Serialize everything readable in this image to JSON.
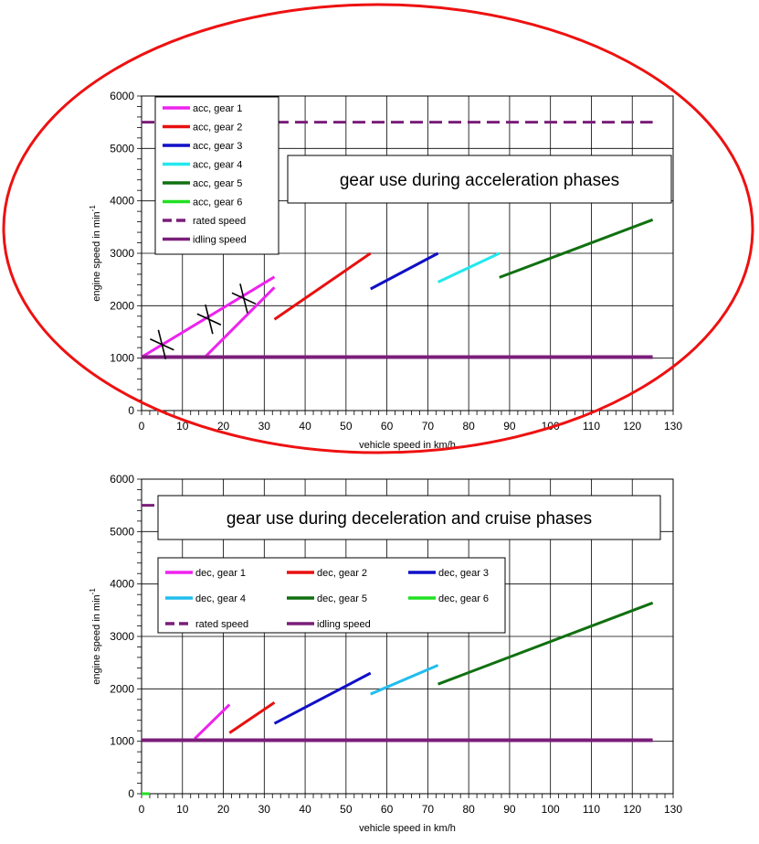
{
  "chart_data": [
    {
      "type": "line",
      "title": "gear use during acceleration phases",
      "xlabel": "vehicle speed in km/h",
      "ylabel": "engine speed in min",
      "ylabel_superscript": "-1",
      "xlim": [
        0,
        130
      ],
      "ylim": [
        0,
        6000
      ],
      "x_ticks": [
        0,
        10,
        20,
        30,
        40,
        50,
        60,
        70,
        80,
        90,
        100,
        110,
        120,
        130
      ],
      "y_ticks": [
        0,
        1000,
        2000,
        3000,
        4000,
        5000,
        6000
      ],
      "grid": true,
      "legend_position": "top-left",
      "series": [
        {
          "name": "acc, gear 1",
          "color": "#ee22ee",
          "style": "solid",
          "segments": [
            [
              [
                0,
                1020
              ],
              [
                32.5,
                2550
              ]
            ],
            [
              [
                15.5,
                1020
              ],
              [
                32.5,
                2350
              ]
            ]
          ]
        },
        {
          "name": "acc, gear 2",
          "color": "#e81010",
          "style": "solid",
          "segments": [
            [
              [
                32.5,
                1740
              ],
              [
                56,
                3000
              ]
            ]
          ]
        },
        {
          "name": "acc, gear 3",
          "color": "#1010c8",
          "style": "solid",
          "segments": [
            [
              [
                56,
                2320
              ],
              [
                72.5,
                3000
              ]
            ]
          ]
        },
        {
          "name": "acc, gear 4",
          "color": "#22e8ee",
          "style": "solid",
          "segments": [
            [
              [
                72.5,
                2450
              ],
              [
                87.5,
                3000
              ]
            ]
          ]
        },
        {
          "name": "acc, gear 5",
          "color": "#107010",
          "style": "solid",
          "segments": [
            [
              [
                87.5,
                2540
              ],
              [
                125,
                3640
              ]
            ]
          ]
        },
        {
          "name": "acc, gear 6",
          "color": "#22e022",
          "style": "solid",
          "segments": []
        },
        {
          "name": "rated speed",
          "color": "#7a1e7a",
          "style": "dashed",
          "segments": [
            [
              [
                0,
                5500
              ],
              [
                125,
                5500
              ]
            ]
          ]
        },
        {
          "name": "idling speed",
          "color": "#7a1e7a",
          "style": "solid",
          "segments": [
            [
              [
                0,
                1020
              ],
              [
                125,
                1020
              ]
            ]
          ]
        }
      ],
      "markers": [
        {
          "x": 5,
          "y": 1260
        },
        {
          "x": 16.5,
          "y": 1740
        },
        {
          "x": 25,
          "y": 2140
        }
      ]
    },
    {
      "type": "line",
      "title": "gear use during deceleration and cruise phases",
      "xlabel": "vehicle speed in km/h",
      "ylabel": "engine speed in min",
      "ylabel_superscript": "-1",
      "xlim": [
        0,
        130
      ],
      "ylim": [
        0,
        6000
      ],
      "x_ticks": [
        0,
        10,
        20,
        30,
        40,
        50,
        60,
        70,
        80,
        90,
        100,
        110,
        120,
        130
      ],
      "y_ticks": [
        0,
        1000,
        2000,
        3000,
        4000,
        5000,
        6000
      ],
      "grid": true,
      "legend_position": "center-left",
      "series": [
        {
          "name": "dec, gear 1",
          "color": "#ee22ee",
          "style": "solid",
          "segments": [
            [
              [
                13,
                1050
              ],
              [
                21.5,
                1700
              ]
            ]
          ]
        },
        {
          "name": "dec, gear 2",
          "color": "#e81010",
          "style": "solid",
          "segments": [
            [
              [
                21.5,
                1160
              ],
              [
                32.5,
                1740
              ]
            ]
          ]
        },
        {
          "name": "dec, gear 3",
          "color": "#1010c8",
          "style": "solid",
          "segments": [
            [
              [
                32.5,
                1340
              ],
              [
                56,
                2300
              ]
            ]
          ]
        },
        {
          "name": "dec, gear 4",
          "color": "#22bdee",
          "style": "solid",
          "segments": [
            [
              [
                56,
                1900
              ],
              [
                72.5,
                2450
              ]
            ]
          ]
        },
        {
          "name": "dec, gear 5",
          "color": "#107010",
          "style": "solid",
          "segments": [
            [
              [
                72.5,
                2090
              ],
              [
                125,
                3640
              ]
            ]
          ]
        },
        {
          "name": "dec, gear 6",
          "color": "#22e022",
          "style": "solid",
          "segments": [
            [
              [
                0,
                0
              ],
              [
                2,
                0
              ]
            ]
          ]
        },
        {
          "name": "rated speed",
          "color": "#7a1e7a",
          "style": "dashed",
          "segments": [
            [
              [
                0,
                5500
              ],
              [
                5,
                5500
              ]
            ]
          ]
        },
        {
          "name": "idling speed",
          "color": "#7a1e7a",
          "style": "solid",
          "segments": [
            [
              [
                0,
                1020
              ],
              [
                125,
                1020
              ]
            ]
          ]
        }
      ]
    }
  ],
  "highlight": {
    "color": "#ee1111"
  }
}
